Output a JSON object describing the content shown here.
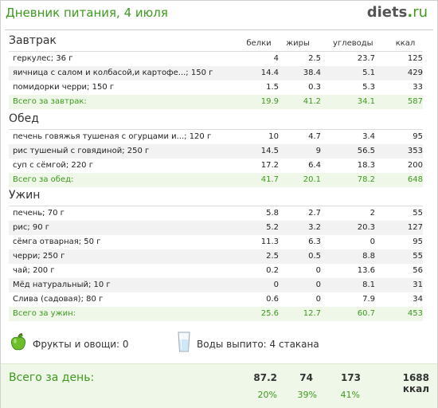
{
  "header": {
    "title": "Дневник питания, 4 июля",
    "logo": {
      "name": "diets",
      "dot": ".",
      "tld": "ru"
    }
  },
  "columns": {
    "protein": "белки",
    "fat": "жиры",
    "carbs": "углеводы",
    "kcal": "ккал"
  },
  "meals": [
    {
      "title": "Завтрак",
      "items": [
        {
          "name": "геркулес; 36 г",
          "protein": "4",
          "fat": "2.5",
          "carbs": "23.7",
          "kcal": "125"
        },
        {
          "name": "яичница с салом и колбасой,и картофе...; 150 г",
          "protein": "14.4",
          "fat": "38.4",
          "carbs": "5.1",
          "kcal": "429"
        },
        {
          "name": "помидорки черри; 150 г",
          "protein": "1.5",
          "fat": "0.3",
          "carbs": "5.3",
          "kcal": "33"
        }
      ],
      "total": {
        "name": "Всего за завтрак:",
        "protein": "19.9",
        "fat": "41.2",
        "carbs": "34.1",
        "kcal": "587"
      }
    },
    {
      "title": "Обед",
      "items": [
        {
          "name": "печень говяжья тушеная с огурцами и...; 120 г",
          "protein": "10",
          "fat": "4.7",
          "carbs": "3.4",
          "kcal": "95"
        },
        {
          "name": "рис тушеный с говядиной; 250 г",
          "protein": "14.5",
          "fat": "9",
          "carbs": "56.5",
          "kcal": "353"
        },
        {
          "name": "суп с сёмгой; 220 г",
          "protein": "17.2",
          "fat": "6.4",
          "carbs": "18.3",
          "kcal": "200"
        }
      ],
      "total": {
        "name": "Всего за обед:",
        "protein": "41.7",
        "fat": "20.1",
        "carbs": "78.2",
        "kcal": "648"
      }
    },
    {
      "title": "Ужин",
      "items": [
        {
          "name": "печень; 70 г",
          "protein": "5.8",
          "fat": "2.7",
          "carbs": "2",
          "kcal": "55"
        },
        {
          "name": "рис; 90 г",
          "protein": "5.2",
          "fat": "3.2",
          "carbs": "20.3",
          "kcal": "127"
        },
        {
          "name": "сёмга отварная; 50 г",
          "protein": "11.3",
          "fat": "6.3",
          "carbs": "0",
          "kcal": "95"
        },
        {
          "name": "черри; 250 г",
          "protein": "2.5",
          "fat": "0.5",
          "carbs": "8.8",
          "kcal": "55"
        },
        {
          "name": "чай; 200 г",
          "protein": "0.2",
          "fat": "0",
          "carbs": "13.6",
          "kcal": "56"
        },
        {
          "name": "Мёд натуральный; 10 г",
          "protein": "0",
          "fat": "0",
          "carbs": "8.1",
          "kcal": "31"
        },
        {
          "name": "Слива (садовая); 80 г",
          "protein": "0.6",
          "fat": "0",
          "carbs": "7.9",
          "kcal": "34"
        }
      ],
      "total": {
        "name": "Всего за ужин:",
        "protein": "25.6",
        "fat": "12.7",
        "carbs": "60.7",
        "kcal": "453"
      }
    }
  ],
  "extras": {
    "fruits": {
      "icon": "apple-icon",
      "label": "Фрукты и овощи: 0"
    },
    "water": {
      "icon": "glass-icon",
      "label": "Воды выпито: 4 стакана"
    }
  },
  "day_total": {
    "label": "Всего за день:",
    "protein": "87.2",
    "fat": "74",
    "carbs": "173",
    "kcal": "1688 ккал",
    "protein_pct": "20%",
    "fat_pct": "39%",
    "carbs_pct": "41%"
  },
  "colors": {
    "accent": "#3e9a1f",
    "total_bg": "#eef7e8",
    "alt_row": "#f2f2f2"
  }
}
